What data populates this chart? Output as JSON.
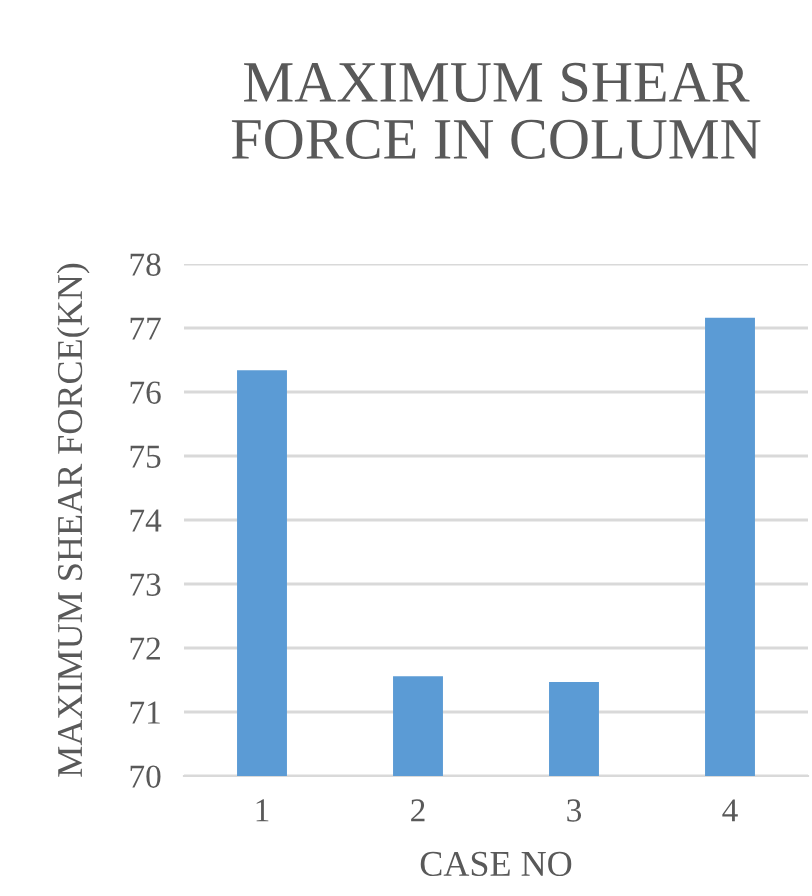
{
  "chart_data": {
    "type": "bar",
    "title": "MAXIMUM SHEAR\nFORCE IN COLUMN",
    "xlabel": "CASE NO",
    "ylabel": "MAXIMUM SHEAR FORCE(KN)",
    "categories": [
      "1",
      "2",
      "3",
      "4"
    ],
    "values": [
      76.34,
      71.56,
      71.47,
      77.16
    ],
    "color": "#5b9bd5",
    "ylim": [
      70,
      78
    ],
    "yticks": [
      70,
      71,
      72,
      73,
      74,
      75,
      76,
      77,
      78
    ],
    "grid": "y",
    "legend": false
  }
}
